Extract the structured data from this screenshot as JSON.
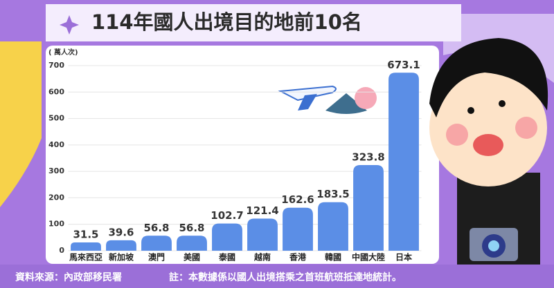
{
  "chart_data": {
    "type": "bar",
    "title": "114年國人出境目的地前10名",
    "y_label": "( 萬人次)",
    "categories": [
      "馬來西亞",
      "新加坡",
      "澳門",
      "美國",
      "泰國",
      "越南",
      "香港",
      "韓國",
      "中國大陸",
      "日本"
    ],
    "values": [
      31.5,
      39.6,
      56.8,
      56.8,
      102.7,
      121.4,
      162.6,
      183.5,
      323.8,
      673.1
    ],
    "color": "#5b8ee6",
    "ylim": [
      0,
      700
    ],
    "yticks": [
      0,
      100,
      200,
      300,
      400,
      500,
      600,
      700
    ],
    "grid": true,
    "source": "資料來源：內政部移民署",
    "note": "註：本數據係以國人出境搭乘之首班航班抵達地統計。"
  }
}
